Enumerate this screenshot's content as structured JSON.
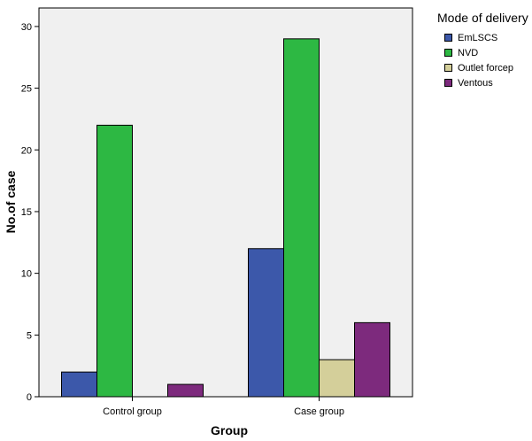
{
  "chart_data": {
    "type": "bar",
    "xlabel": "Group",
    "ylabel": "No.of case",
    "ylim": [
      0,
      31.5
    ],
    "yticks": [
      0,
      5,
      10,
      15,
      20,
      25,
      30
    ],
    "grid": false,
    "legend_position": "right",
    "categories": [
      "Control group",
      "Case group"
    ],
    "legend_title": "Mode of delivery",
    "series": [
      {
        "name": "EmLSCS",
        "color": "#3c58aa",
        "values": [
          2,
          12
        ]
      },
      {
        "name": "NVD",
        "color": "#2db843",
        "values": [
          22,
          29
        ]
      },
      {
        "name": "Outlet forcep",
        "color": "#d4cf9a",
        "values": [
          0,
          3
        ]
      },
      {
        "name": "Ventous",
        "color": "#7d2a7d",
        "values": [
          1,
          6
        ]
      }
    ]
  }
}
